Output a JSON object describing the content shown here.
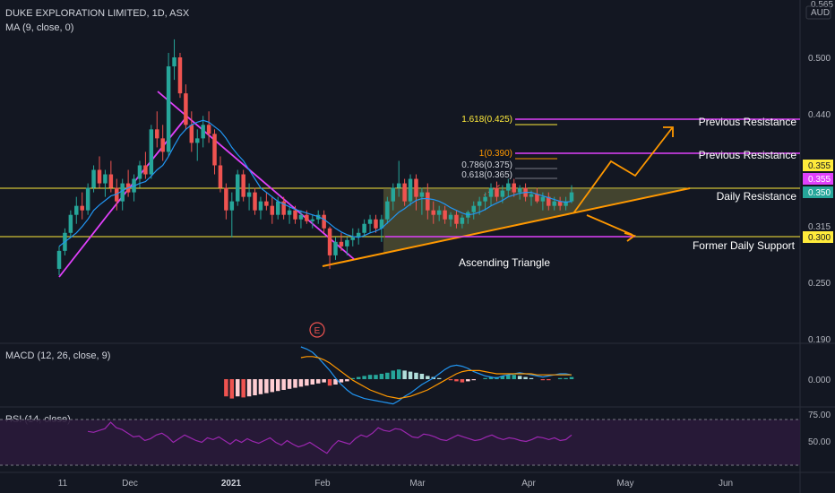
{
  "header": {
    "title": "DUKE EXPLORATION LIMITED, 1D, ASX",
    "indicator": "MA (9, close, 0)",
    "currency": "AUD"
  },
  "colors": {
    "background": "#131722",
    "up": "#26a69a",
    "down": "#ef5350",
    "magenta": "#e040fb",
    "orange": "#ff9800",
    "yellow": "#ffeb3b",
    "ma": "#2196f3",
    "rsi": "#9c27b0"
  },
  "chart_data": [
    {
      "type": "candlestick",
      "price_axis": {
        "ticks": [
          "0.565",
          "0.500",
          "0.440",
          "0.355",
          "0.315",
          "0.250",
          "0.190"
        ],
        "ylim": [
          0.19,
          0.565
        ]
      },
      "time_axis": {
        "labels": [
          "11",
          "Dec",
          "2021",
          "Feb",
          "Mar",
          "Apr",
          "May",
          "Jun"
        ]
      },
      "price_badges": [
        {
          "text": "0.355",
          "color": "#ffeb3b"
        },
        {
          "text": "0.355",
          "color": "#e040fb"
        },
        {
          "text": "0.350",
          "color": "#26a69a"
        },
        {
          "text": "0.300",
          "color": "#ffeb3b"
        }
      ],
      "horizontal_levels": [
        {
          "value": 0.355,
          "color": "#ffeb3b"
        },
        {
          "value": 0.3,
          "color": "#ffeb3b"
        }
      ],
      "fibonacci_labels": [
        {
          "text": "1.618(0.425)",
          "value": 0.425
        },
        {
          "text": "1(0.390)",
          "value": 0.39
        },
        {
          "text": "0.786(0.375)",
          "value": 0.375
        },
        {
          "text": "0.618(0.365)",
          "value": 0.365
        }
      ],
      "annotations": {
        "previous_resistance_1": "Previous Resistance",
        "previous_resistance_2": "Previous Resistance",
        "daily_resistance": "Daily Resistance",
        "former_daily_support": "Former Daily Support",
        "pattern": "Ascending Triangle",
        "earnings_marker": "E"
      },
      "candles": [
        {
          "o": 0.265,
          "h": 0.29,
          "l": 0.258,
          "c": 0.285
        },
        {
          "o": 0.285,
          "h": 0.31,
          "l": 0.28,
          "c": 0.305
        },
        {
          "o": 0.305,
          "h": 0.33,
          "l": 0.3,
          "c": 0.325
        },
        {
          "o": 0.325,
          "h": 0.345,
          "l": 0.315,
          "c": 0.335
        },
        {
          "o": 0.335,
          "h": 0.35,
          "l": 0.32,
          "c": 0.33
        },
        {
          "o": 0.33,
          "h": 0.36,
          "l": 0.325,
          "c": 0.355
        },
        {
          "o": 0.355,
          "h": 0.38,
          "l": 0.35,
          "c": 0.375
        },
        {
          "o": 0.375,
          "h": 0.39,
          "l": 0.355,
          "c": 0.36
        },
        {
          "o": 0.36,
          "h": 0.375,
          "l": 0.345,
          "c": 0.37
        },
        {
          "o": 0.37,
          "h": 0.385,
          "l": 0.35,
          "c": 0.355
        },
        {
          "o": 0.355,
          "h": 0.365,
          "l": 0.33,
          "c": 0.34
        },
        {
          "o": 0.34,
          "h": 0.365,
          "l": 0.33,
          "c": 0.36
        },
        {
          "o": 0.36,
          "h": 0.375,
          "l": 0.345,
          "c": 0.35
        },
        {
          "o": 0.35,
          "h": 0.37,
          "l": 0.34,
          "c": 0.365
        },
        {
          "o": 0.365,
          "h": 0.385,
          "l": 0.355,
          "c": 0.38
        },
        {
          "o": 0.38,
          "h": 0.395,
          "l": 0.365,
          "c": 0.37
        },
        {
          "o": 0.37,
          "h": 0.425,
          "l": 0.365,
          "c": 0.42
        },
        {
          "o": 0.42,
          "h": 0.44,
          "l": 0.4,
          "c": 0.41
        },
        {
          "o": 0.41,
          "h": 0.425,
          "l": 0.385,
          "c": 0.395
        },
        {
          "o": 0.395,
          "h": 0.505,
          "l": 0.39,
          "c": 0.49
        },
        {
          "o": 0.49,
          "h": 0.52,
          "l": 0.475,
          "c": 0.5
        },
        {
          "o": 0.5,
          "h": 0.505,
          "l": 0.455,
          "c": 0.46
        },
        {
          "o": 0.46,
          "h": 0.47,
          "l": 0.42,
          "c": 0.425
        },
        {
          "o": 0.425,
          "h": 0.44,
          "l": 0.395,
          "c": 0.405
        },
        {
          "o": 0.405,
          "h": 0.42,
          "l": 0.385,
          "c": 0.41
        },
        {
          "o": 0.41,
          "h": 0.435,
          "l": 0.4,
          "c": 0.425
        },
        {
          "o": 0.425,
          "h": 0.44,
          "l": 0.405,
          "c": 0.415
        },
        {
          "o": 0.415,
          "h": 0.42,
          "l": 0.37,
          "c": 0.38
        },
        {
          "o": 0.38,
          "h": 0.39,
          "l": 0.35,
          "c": 0.355
        },
        {
          "o": 0.355,
          "h": 0.36,
          "l": 0.32,
          "c": 0.33
        },
        {
          "o": 0.33,
          "h": 0.35,
          "l": 0.3,
          "c": 0.34
        },
        {
          "o": 0.34,
          "h": 0.375,
          "l": 0.335,
          "c": 0.37
        },
        {
          "o": 0.37,
          "h": 0.375,
          "l": 0.34,
          "c": 0.345
        },
        {
          "o": 0.345,
          "h": 0.36,
          "l": 0.33,
          "c": 0.35
        },
        {
          "o": 0.35,
          "h": 0.355,
          "l": 0.325,
          "c": 0.33
        },
        {
          "o": 0.33,
          "h": 0.345,
          "l": 0.32,
          "c": 0.34
        },
        {
          "o": 0.34,
          "h": 0.35,
          "l": 0.33,
          "c": 0.335
        },
        {
          "o": 0.335,
          "h": 0.345,
          "l": 0.315,
          "c": 0.325
        },
        {
          "o": 0.325,
          "h": 0.345,
          "l": 0.32,
          "c": 0.34
        },
        {
          "o": 0.34,
          "h": 0.345,
          "l": 0.32,
          "c": 0.325
        },
        {
          "o": 0.325,
          "h": 0.335,
          "l": 0.315,
          "c": 0.33
        },
        {
          "o": 0.33,
          "h": 0.335,
          "l": 0.315,
          "c": 0.32
        },
        {
          "o": 0.32,
          "h": 0.33,
          "l": 0.31,
          "c": 0.325
        },
        {
          "o": 0.325,
          "h": 0.33,
          "l": 0.315,
          "c": 0.318
        },
        {
          "o": 0.318,
          "h": 0.325,
          "l": 0.31,
          "c": 0.32
        },
        {
          "o": 0.32,
          "h": 0.33,
          "l": 0.315,
          "c": 0.325
        },
        {
          "o": 0.325,
          "h": 0.33,
          "l": 0.305,
          "c": 0.31
        },
        {
          "o": 0.31,
          "h": 0.312,
          "l": 0.265,
          "c": 0.28
        },
        {
          "o": 0.28,
          "h": 0.3,
          "l": 0.275,
          "c": 0.295
        },
        {
          "o": 0.295,
          "h": 0.305,
          "l": 0.285,
          "c": 0.29
        },
        {
          "o": 0.29,
          "h": 0.3,
          "l": 0.28,
          "c": 0.297
        },
        {
          "o": 0.297,
          "h": 0.31,
          "l": 0.29,
          "c": 0.3
        },
        {
          "o": 0.3,
          "h": 0.31,
          "l": 0.292,
          "c": 0.305
        },
        {
          "o": 0.305,
          "h": 0.32,
          "l": 0.3,
          "c": 0.315
        },
        {
          "o": 0.315,
          "h": 0.325,
          "l": 0.305,
          "c": 0.32
        },
        {
          "o": 0.32,
          "h": 0.325,
          "l": 0.305,
          "c": 0.31
        },
        {
          "o": 0.31,
          "h": 0.325,
          "l": 0.295,
          "c": 0.32
        },
        {
          "o": 0.32,
          "h": 0.345,
          "l": 0.315,
          "c": 0.34
        },
        {
          "o": 0.34,
          "h": 0.36,
          "l": 0.33,
          "c": 0.355
        },
        {
          "o": 0.355,
          "h": 0.385,
          "l": 0.345,
          "c": 0.36
        },
        {
          "o": 0.36,
          "h": 0.365,
          "l": 0.335,
          "c": 0.34
        },
        {
          "o": 0.34,
          "h": 0.37,
          "l": 0.335,
          "c": 0.365
        },
        {
          "o": 0.365,
          "h": 0.37,
          "l": 0.33,
          "c": 0.345
        },
        {
          "o": 0.345,
          "h": 0.355,
          "l": 0.325,
          "c": 0.35
        },
        {
          "o": 0.35,
          "h": 0.36,
          "l": 0.32,
          "c": 0.33
        },
        {
          "o": 0.33,
          "h": 0.34,
          "l": 0.315,
          "c": 0.325
        },
        {
          "o": 0.325,
          "h": 0.335,
          "l": 0.318,
          "c": 0.33
        },
        {
          "o": 0.33,
          "h": 0.335,
          "l": 0.315,
          "c": 0.32
        },
        {
          "o": 0.32,
          "h": 0.328,
          "l": 0.312,
          "c": 0.325
        },
        {
          "o": 0.325,
          "h": 0.33,
          "l": 0.31,
          "c": 0.315
        },
        {
          "o": 0.315,
          "h": 0.325,
          "l": 0.31,
          "c": 0.322
        },
        {
          "o": 0.322,
          "h": 0.33,
          "l": 0.315,
          "c": 0.328
        },
        {
          "o": 0.328,
          "h": 0.34,
          "l": 0.32,
          "c": 0.335
        },
        {
          "o": 0.335,
          "h": 0.345,
          "l": 0.325,
          "c": 0.34
        },
        {
          "o": 0.34,
          "h": 0.35,
          "l": 0.33,
          "c": 0.345
        },
        {
          "o": 0.345,
          "h": 0.36,
          "l": 0.335,
          "c": 0.355
        },
        {
          "o": 0.355,
          "h": 0.362,
          "l": 0.34,
          "c": 0.345
        },
        {
          "o": 0.345,
          "h": 0.358,
          "l": 0.338,
          "c": 0.352
        },
        {
          "o": 0.352,
          "h": 0.365,
          "l": 0.345,
          "c": 0.36
        },
        {
          "o": 0.36,
          "h": 0.365,
          "l": 0.345,
          "c": 0.35
        },
        {
          "o": 0.35,
          "h": 0.358,
          "l": 0.342,
          "c": 0.355
        },
        {
          "o": 0.355,
          "h": 0.36,
          "l": 0.34,
          "c": 0.345
        },
        {
          "o": 0.345,
          "h": 0.352,
          "l": 0.335,
          "c": 0.348
        },
        {
          "o": 0.348,
          "h": 0.355,
          "l": 0.338,
          "c": 0.34
        },
        {
          "o": 0.34,
          "h": 0.35,
          "l": 0.33,
          "c": 0.345
        },
        {
          "o": 0.345,
          "h": 0.35,
          "l": 0.33,
          "c": 0.335
        },
        {
          "o": 0.335,
          "h": 0.345,
          "l": 0.33,
          "c": 0.34
        },
        {
          "o": 0.34,
          "h": 0.345,
          "l": 0.33,
          "c": 0.335
        },
        {
          "o": 0.335,
          "h": 0.345,
          "l": 0.33,
          "c": 0.34
        },
        {
          "o": 0.34,
          "h": 0.358,
          "l": 0.338,
          "c": 0.35
        }
      ],
      "ma9": [
        0.29,
        0.295,
        0.3,
        0.305,
        0.312,
        0.32,
        0.33,
        0.336,
        0.341,
        0.346,
        0.348,
        0.352,
        0.355,
        0.357,
        0.36,
        0.362,
        0.368,
        0.375,
        0.38,
        0.39,
        0.402,
        0.413,
        0.42,
        0.425,
        0.428,
        0.43,
        0.428,
        0.423,
        0.418,
        0.41,
        0.4,
        0.392,
        0.385,
        0.375,
        0.365,
        0.355,
        0.35,
        0.345,
        0.34,
        0.337,
        0.334,
        0.331,
        0.329,
        0.327,
        0.325,
        0.323,
        0.32,
        0.315,
        0.31,
        0.306,
        0.303,
        0.301,
        0.3,
        0.302,
        0.305,
        0.307,
        0.31,
        0.316,
        0.322,
        0.328,
        0.332,
        0.337,
        0.341,
        0.343,
        0.343,
        0.342,
        0.34,
        0.337,
        0.333,
        0.33,
        0.327,
        0.325,
        0.326,
        0.328,
        0.331,
        0.335,
        0.338,
        0.341,
        0.345,
        0.347,
        0.349,
        0.35,
        0.35,
        0.348,
        0.346,
        0.344,
        0.342,
        0.34,
        0.339,
        0.34
      ],
      "macd": {
        "title": "MACD (12, 26, close, 9)",
        "tick": "0.000",
        "hist": [
          0,
          0,
          0,
          0,
          0,
          0,
          0,
          0,
          0,
          0,
          0,
          0,
          0,
          0,
          0,
          0,
          0,
          0,
          0,
          0,
          0,
          0,
          0,
          0,
          0,
          0,
          0,
          0,
          0,
          -0.016,
          -0.018,
          -0.016,
          -0.017,
          -0.016,
          -0.015,
          -0.014,
          -0.013,
          -0.012,
          -0.011,
          -0.01,
          -0.009,
          -0.008,
          -0.007,
          -0.006,
          -0.005,
          -0.004,
          -0.003,
          -0.006,
          -0.005,
          -0.003,
          -0.002,
          0.001,
          0.002,
          0.003,
          0.004,
          0.004,
          0.005,
          0.006,
          0.008,
          0.009,
          0.008,
          0.007,
          0.006,
          0.005,
          0.003,
          0.002,
          0.001,
          0.0,
          -0.001,
          -0.002,
          -0.003,
          -0.002,
          -0.001,
          0.0,
          0.001,
          0.002,
          0.002,
          0.003,
          0.004,
          0.004,
          0.003,
          0.002,
          0.001,
          0.0,
          -0.001,
          -0.001,
          0.0,
          0.001,
          0.001,
          0.002
        ],
        "macd": [
          0.03,
          0.028,
          0.025,
          0.02,
          0.014,
          0.008,
          0.001,
          -0.005,
          -0.01,
          -0.014,
          -0.016,
          -0.018,
          -0.019,
          -0.02,
          -0.021,
          -0.022,
          -0.023,
          -0.02,
          -0.016,
          -0.013,
          -0.009,
          -0.005,
          -0.002,
          0.001,
          0.005,
          0.009,
          0.012,
          0.013,
          0.012,
          0.01,
          0.007,
          0.005,
          0.003,
          0.002,
          0.001,
          0.003,
          0.004,
          0.005,
          0.006,
          0.005,
          0.004,
          0.003,
          0.002,
          0.003,
          0.004,
          0.005,
          0.005,
          0.004
        ],
        "signal": [
          0.02,
          0.021,
          0.021,
          0.02,
          0.018,
          0.015,
          0.011,
          0.007,
          0.003,
          -0.001,
          -0.004,
          -0.007,
          -0.01,
          -0.012,
          -0.014,
          -0.016,
          -0.017,
          -0.018,
          -0.017,
          -0.016,
          -0.014,
          -0.012,
          -0.01,
          -0.007,
          -0.004,
          -0.001,
          0.002,
          0.005,
          0.007,
          0.008,
          0.008,
          0.008,
          0.007,
          0.006,
          0.005,
          0.005,
          0.005,
          0.005,
          0.005,
          0.005,
          0.005,
          0.004,
          0.004,
          0.004,
          0.004,
          0.004,
          0.004,
          0.004
        ]
      },
      "rsi": {
        "title": "RSI (14, close)",
        "ticks": [
          "75.00",
          "50.00"
        ],
        "values": [
          62,
          61,
          63,
          65,
          72,
          66,
          64,
          60,
          56,
          57,
          52,
          54,
          58,
          60,
          56,
          50,
          54,
          58,
          55,
          52,
          50,
          55,
          53,
          56,
          52,
          48,
          53,
          50,
          54,
          51,
          49,
          52,
          55,
          50,
          47,
          52,
          48,
          45,
          47,
          50,
          46,
          42,
          38,
          46,
          52,
          50,
          48,
          54,
          58,
          56,
          60,
          66,
          63,
          62,
          65,
          64,
          60,
          56,
          55,
          59,
          58,
          56,
          53,
          52,
          55,
          58,
          56,
          54,
          52,
          53,
          56,
          58,
          55,
          53,
          55,
          54,
          52,
          51,
          53,
          56,
          55,
          53,
          55,
          52,
          53,
          58
        ]
      }
    }
  ]
}
